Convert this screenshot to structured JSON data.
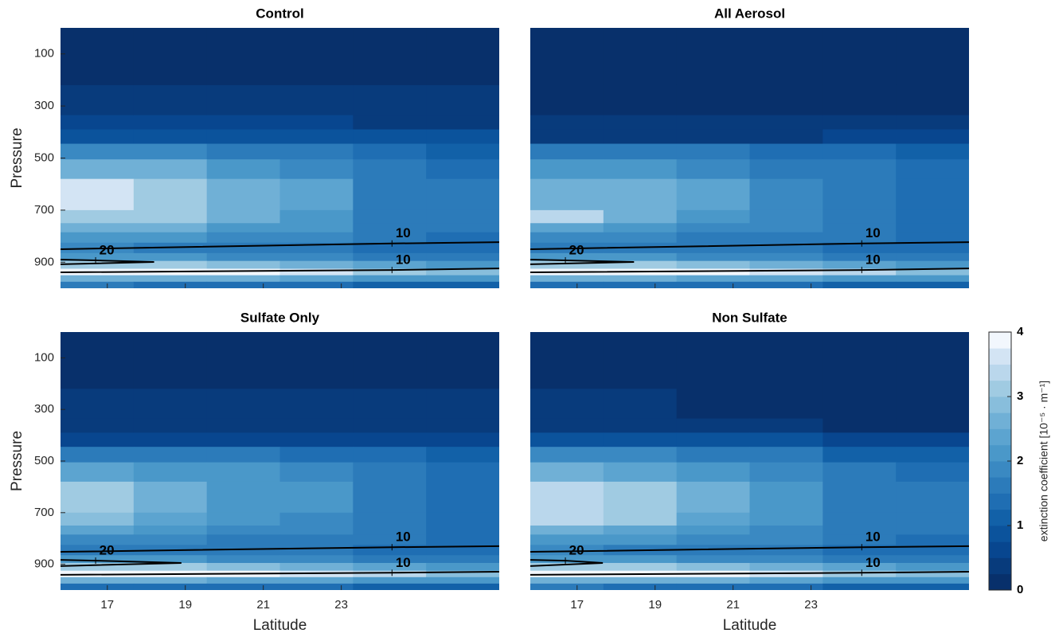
{
  "chart_data": [
    {
      "type": "heatmap",
      "title": "Control",
      "ylabel": "Pressure",
      "show_xtick_labels": false,
      "x_edges": [
        15.8,
        17.675,
        19.55,
        21.425,
        23.3,
        25.175,
        27.05
      ],
      "y_edges": [
        0,
        220,
        335,
        390,
        445,
        505,
        580,
        700,
        750,
        785,
        825,
        865,
        895,
        925,
        950,
        975,
        1000
      ],
      "xlim": [
        15.8,
        27.05
      ],
      "ylim": [
        1000,
        0
      ],
      "xticks": [
        17,
        19,
        21,
        23
      ],
      "yticks": [
        100,
        300,
        500,
        700,
        900
      ],
      "values": [
        [
          0.1,
          0.1,
          0.1,
          0.1,
          0.1,
          0.1
        ],
        [
          0.4,
          0.4,
          0.4,
          0.4,
          0.4,
          0.4
        ],
        [
          0.6,
          0.6,
          0.6,
          0.6,
          0.4,
          0.4
        ],
        [
          0.9,
          0.9,
          0.9,
          0.9,
          0.8,
          0.8
        ],
        [
          1.9,
          1.9,
          1.7,
          1.7,
          1.4,
          1.2
        ],
        [
          2.5,
          2.5,
          2.0,
          1.9,
          1.5,
          1.4
        ],
        [
          3.6,
          3.2,
          2.6,
          2.4,
          1.6,
          1.5
        ],
        [
          3.2,
          3.2,
          2.6,
          2.1,
          1.6,
          1.5
        ],
        [
          2.6,
          2.5,
          2.2,
          2.0,
          1.6,
          1.5
        ],
        [
          2.2,
          2.1,
          1.9,
          1.8,
          1.5,
          1.4
        ],
        [
          1.8,
          1.7,
          1.6,
          1.5,
          1.4,
          1.3
        ],
        [
          2.0,
          2.0,
          1.9,
          1.8,
          1.6,
          1.5
        ],
        [
          3.0,
          3.0,
          2.9,
          2.7,
          2.4,
          2.2
        ],
        [
          3.9,
          3.9,
          3.8,
          3.6,
          3.2,
          2.8
        ],
        [
          2.6,
          2.5,
          2.5,
          2.4,
          2.2,
          2.0
        ],
        [
          1.5,
          1.4,
          1.4,
          1.3,
          1.2,
          1.1
        ]
      ],
      "contours": [
        {
          "level": 10,
          "x": [
            15.8,
            24.3,
            27.05
          ],
          "y": [
            850,
            828,
            823
          ]
        },
        {
          "level": 20,
          "x": [
            15.8,
            16.7,
            18.2,
            15.8
          ],
          "y": [
            890,
            893,
            899,
            908
          ]
        },
        {
          "level": 10,
          "x": [
            15.8,
            24.3,
            27.05
          ],
          "y": [
            939,
            930,
            924
          ]
        }
      ]
    },
    {
      "type": "heatmap",
      "title": "All Aerosol",
      "show_xtick_labels": false,
      "x_edges": [
        15.8,
        17.675,
        19.55,
        21.425,
        23.3,
        25.175,
        27.05
      ],
      "y_edges": [
        0,
        220,
        335,
        390,
        445,
        505,
        580,
        700,
        750,
        785,
        825,
        865,
        895,
        925,
        950,
        975,
        1000
      ],
      "xlim": [
        15.8,
        27.05
      ],
      "ylim": [
        1000,
        0
      ],
      "xticks": [
        17,
        19,
        21,
        23
      ],
      "values": [
        [
          0.1,
          0.1,
          0.1,
          0.1,
          0.1,
          0.1
        ],
        [
          0.15,
          0.15,
          0.15,
          0.15,
          0.15,
          0.15
        ],
        [
          0.4,
          0.4,
          0.4,
          0.4,
          0.4,
          0.4
        ],
        [
          0.4,
          0.4,
          0.4,
          0.4,
          0.5,
          0.5
        ],
        [
          1.6,
          1.6,
          1.6,
          1.4,
          1.4,
          1.2
        ],
        [
          2.2,
          2.2,
          1.9,
          1.7,
          1.5,
          1.3
        ],
        [
          2.5,
          2.6,
          2.3,
          1.8,
          1.6,
          1.4
        ],
        [
          3.3,
          2.5,
          2.1,
          1.8,
          1.6,
          1.4
        ],
        [
          2.3,
          2.2,
          1.9,
          1.8,
          1.6,
          1.4
        ],
        [
          1.9,
          1.8,
          1.7,
          1.6,
          1.5,
          1.4
        ],
        [
          1.7,
          1.7,
          1.6,
          1.5,
          1.4,
          1.3
        ],
        [
          2.0,
          2.0,
          1.9,
          1.8,
          1.6,
          1.5
        ],
        [
          3.1,
          3.0,
          2.9,
          2.7,
          2.4,
          2.2
        ],
        [
          3.9,
          3.9,
          3.8,
          3.6,
          3.3,
          2.9
        ],
        [
          2.5,
          2.5,
          2.4,
          2.3,
          2.2,
          2.0
        ],
        [
          1.4,
          1.4,
          1.3,
          1.3,
          1.2,
          1.1
        ]
      ],
      "contours": [
        {
          "level": 10,
          "x": [
            15.8,
            24.3,
            27.05
          ],
          "y": [
            850,
            828,
            823
          ]
        },
        {
          "level": 20,
          "x": [
            15.8,
            16.7,
            18.46,
            15.8
          ],
          "y": [
            890,
            893,
            899,
            908
          ]
        },
        {
          "level": 10,
          "x": [
            15.8,
            24.3,
            27.05
          ],
          "y": [
            939,
            930,
            924
          ]
        }
      ]
    },
    {
      "type": "heatmap",
      "title": "Sulfate Only",
      "ylabel": "Pressure",
      "xlabel": "Latitude",
      "show_xtick_labels": true,
      "x_edges": [
        15.8,
        17.675,
        19.55,
        21.425,
        23.3,
        25.175,
        27.05
      ],
      "y_edges": [
        0,
        220,
        335,
        390,
        445,
        505,
        580,
        700,
        750,
        785,
        825,
        865,
        895,
        925,
        950,
        975,
        1000
      ],
      "xlim": [
        15.8,
        27.05
      ],
      "ylim": [
        1000,
        0
      ],
      "xticks": [
        17,
        19,
        21,
        23
      ],
      "yticks": [
        100,
        300,
        500,
        700,
        900
      ],
      "values": [
        [
          0.1,
          0.1,
          0.1,
          0.1,
          0.1,
          0.1
        ],
        [
          0.3,
          0.3,
          0.3,
          0.3,
          0.3,
          0.3
        ],
        [
          0.4,
          0.4,
          0.4,
          0.4,
          0.4,
          0.4
        ],
        [
          0.7,
          0.7,
          0.7,
          0.7,
          0.7,
          0.7
        ],
        [
          1.5,
          1.5,
          1.5,
          1.4,
          1.3,
          1.2
        ],
        [
          2.3,
          2.2,
          2.0,
          1.8,
          1.5,
          1.3
        ],
        [
          3.2,
          2.5,
          2.2,
          2.0,
          1.6,
          1.4
        ],
        [
          2.9,
          2.4,
          2.1,
          1.9,
          1.6,
          1.4
        ],
        [
          2.3,
          2.2,
          1.9,
          1.8,
          1.6,
          1.4
        ],
        [
          1.9,
          1.8,
          1.7,
          1.6,
          1.5,
          1.4
        ],
        [
          1.7,
          1.7,
          1.6,
          1.5,
          1.4,
          1.3
        ],
        [
          2.0,
          2.0,
          1.9,
          1.8,
          1.6,
          1.5
        ],
        [
          3.1,
          3.0,
          2.9,
          2.7,
          2.4,
          2.2
        ],
        [
          3.9,
          3.9,
          3.9,
          3.6,
          3.3,
          2.9
        ],
        [
          2.5,
          2.5,
          2.4,
          2.3,
          2.2,
          2.0
        ],
        [
          1.4,
          1.4,
          1.3,
          1.3,
          1.2,
          1.1
        ]
      ],
      "contours": [
        {
          "level": 10,
          "x": [
            15.8,
            24.3,
            27.05
          ],
          "y": [
            852,
            834,
            830
          ]
        },
        {
          "level": 20,
          "x": [
            15.8,
            16.7,
            18.9,
            15.8
          ],
          "y": [
            883,
            886,
            895,
            907
          ]
        },
        {
          "level": 10,
          "x": [
            15.8,
            24.3,
            27.05
          ],
          "y": [
            941,
            933,
            929
          ]
        }
      ]
    },
    {
      "type": "heatmap",
      "title": "Non Sulfate",
      "xlabel": "Latitude",
      "show_xtick_labels": true,
      "x_edges": [
        15.8,
        17.675,
        19.55,
        21.425,
        23.3,
        25.175,
        27.05
      ],
      "y_edges": [
        0,
        220,
        335,
        390,
        445,
        505,
        580,
        700,
        750,
        785,
        825,
        865,
        895,
        925,
        950,
        975,
        1000
      ],
      "xlim": [
        15.8,
        27.05
      ],
      "ylim": [
        1000,
        0
      ],
      "xticks": [
        17,
        19,
        21,
        23
      ],
      "values": [
        [
          0.1,
          0.1,
          0.1,
          0.1,
          0.1,
          0.1
        ],
        [
          0.4,
          0.4,
          0.15,
          0.15,
          0.15,
          0.15
        ],
        [
          0.4,
          0.4,
          0.4,
          0.4,
          0.15,
          0.15
        ],
        [
          0.9,
          0.9,
          0.9,
          0.9,
          0.6,
          0.6
        ],
        [
          1.8,
          1.8,
          1.5,
          1.5,
          1.2,
          1.2
        ],
        [
          2.7,
          2.4,
          2.2,
          1.9,
          1.5,
          1.3
        ],
        [
          3.4,
          3.1,
          2.5,
          2.2,
          1.6,
          1.5
        ],
        [
          3.3,
          3.1,
          2.4,
          2.0,
          1.6,
          1.5
        ],
        [
          2.6,
          2.4,
          2.1,
          1.9,
          1.6,
          1.5
        ],
        [
          2.1,
          2.0,
          1.9,
          1.8,
          1.5,
          1.4
        ],
        [
          1.8,
          1.7,
          1.6,
          1.5,
          1.4,
          1.3
        ],
        [
          2.0,
          2.0,
          1.9,
          1.8,
          1.6,
          1.5
        ],
        [
          3.0,
          3.0,
          2.9,
          2.7,
          2.4,
          2.2
        ],
        [
          3.9,
          3.9,
          3.8,
          3.6,
          3.2,
          2.8
        ],
        [
          2.6,
          2.5,
          2.5,
          2.4,
          2.2,
          2.0
        ],
        [
          1.5,
          1.4,
          1.4,
          1.3,
          1.2,
          1.1
        ]
      ],
      "contours": [
        {
          "level": 10,
          "x": [
            15.8,
            24.3,
            27.05
          ],
          "y": [
            852,
            834,
            830
          ]
        },
        {
          "level": 20,
          "x": [
            15.8,
            16.7,
            17.66,
            15.8
          ],
          "y": [
            883,
            886,
            895,
            907
          ]
        },
        {
          "level": 10,
          "x": [
            15.8,
            24.3,
            27.05
          ],
          "y": [
            941,
            933,
            929
          ]
        }
      ]
    }
  ],
  "colorbar": {
    "label": "extinction coefficient [10⁻⁵ · m⁻¹]",
    "lim": [
      0,
      4
    ],
    "ticks": [
      0,
      1,
      2,
      3,
      4
    ],
    "colormap": [
      "#08306b",
      "#083b7c",
      "#08468f",
      "#0b539c",
      "#1261a8",
      "#1f6eb3",
      "#2c7bba",
      "#3a89c2",
      "#4a98c9",
      "#5ca4d0",
      "#70b0d6",
      "#88bedc",
      "#a0cbe2",
      "#bad7ec",
      "#d3e4f4",
      "#f2f7fd"
    ]
  }
}
